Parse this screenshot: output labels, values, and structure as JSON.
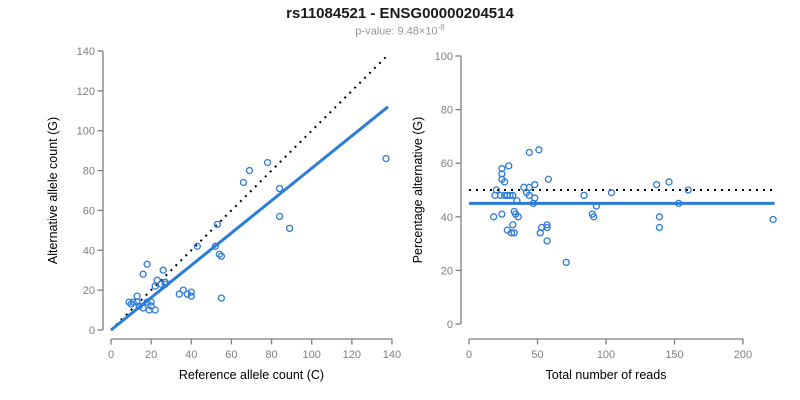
{
  "header": {
    "title": "rs11084521 - ENSG00000204514",
    "subtitle_base": "p-value: 9.48×10",
    "subtitle_exponent": "-8"
  },
  "colors": {
    "accent_blue": "#2B7BD8",
    "line_black": "#000000",
    "axis_gray": "#7f7f7f",
    "subtitle_gray": "#979797",
    "background": "#ffffff"
  },
  "chart_data": [
    {
      "type": "scatter",
      "name": "allele-counts-plot",
      "xlabel": "Reference allele count (C)",
      "ylabel": "Alternative allele count (G)",
      "xlim": [
        0,
        140
      ],
      "ylim": [
        0,
        140
      ],
      "xticks": [
        0,
        20,
        40,
        60,
        80,
        100,
        120,
        140
      ],
      "yticks": [
        0,
        20,
        40,
        60,
        80,
        100,
        120,
        140
      ],
      "grid": false,
      "legend": "none",
      "point_color": "#2B7BD8",
      "points": [
        [
          9,
          14
        ],
        [
          10,
          13
        ],
        [
          11,
          14
        ],
        [
          13,
          14
        ],
        [
          13,
          17
        ],
        [
          14,
          12
        ],
        [
          16,
          11
        ],
        [
          16,
          28
        ],
        [
          18,
          14
        ],
        [
          18,
          33
        ],
        [
          19,
          10
        ],
        [
          20,
          14
        ],
        [
          20,
          12
        ],
        [
          22,
          10
        ],
        [
          22,
          22
        ],
        [
          23,
          25
        ],
        [
          25,
          23
        ],
        [
          26,
          30
        ],
        [
          27,
          23
        ],
        [
          27,
          24
        ],
        [
          34,
          18
        ],
        [
          36,
          20
        ],
        [
          38,
          18
        ],
        [
          40,
          17
        ],
        [
          40,
          19
        ],
        [
          43,
          42
        ],
        [
          52,
          42
        ],
        [
          53,
          53
        ],
        [
          54,
          38
        ],
        [
          55,
          37
        ],
        [
          55,
          16
        ],
        [
          66,
          74
        ],
        [
          69,
          80
        ],
        [
          78,
          84
        ],
        [
          84,
          71
        ],
        [
          84,
          57
        ],
        [
          89,
          51
        ],
        [
          137,
          86
        ]
      ],
      "lines": [
        {
          "name": "identity-line",
          "style": "dotted",
          "color": "#000000",
          "width": 2,
          "x1": 0,
          "y1": 0,
          "x2": 137,
          "y2": 137
        },
        {
          "name": "regression-line",
          "style": "solid",
          "color": "#2B7BD8",
          "width": 3,
          "x1": 0,
          "y1": 0,
          "x2": 138,
          "y2": 112
        }
      ]
    },
    {
      "type": "scatter",
      "name": "percentage-alternative-plot",
      "xlabel": "Total number of reads",
      "ylabel": "Percentage alternative (G)",
      "xlim": [
        0,
        225
      ],
      "ylim": [
        0,
        100
      ],
      "xticks": [
        0,
        50,
        100,
        150,
        200
      ],
      "yticks": [
        0,
        20,
        40,
        60,
        80,
        100
      ],
      "grid": false,
      "legend": "none",
      "point_color": "#2B7BD8",
      "points": [
        [
          44,
          64
        ],
        [
          51,
          65
        ],
        [
          24,
          58
        ],
        [
          29,
          59
        ],
        [
          24,
          56
        ],
        [
          24,
          54
        ],
        [
          26,
          53
        ],
        [
          58,
          54
        ],
        [
          44,
          51
        ],
        [
          48,
          52
        ],
        [
          20,
          50
        ],
        [
          40,
          51
        ],
        [
          19,
          48
        ],
        [
          23,
          48
        ],
        [
          26,
          48
        ],
        [
          28,
          48
        ],
        [
          30,
          48
        ],
        [
          32,
          48
        ],
        [
          35,
          46
        ],
        [
          42,
          49
        ],
        [
          44,
          48
        ],
        [
          47,
          45
        ],
        [
          48,
          47
        ],
        [
          84,
          48
        ],
        [
          93,
          44
        ],
        [
          104,
          49
        ],
        [
          137,
          52
        ],
        [
          146,
          53
        ],
        [
          153,
          45
        ],
        [
          160,
          50
        ],
        [
          24,
          41
        ],
        [
          18,
          40
        ],
        [
          33,
          42
        ],
        [
          34,
          41
        ],
        [
          36,
          40
        ],
        [
          32,
          37
        ],
        [
          28,
          35
        ],
        [
          31,
          34
        ],
        [
          33,
          34
        ],
        [
          52,
          34
        ],
        [
          53,
          36
        ],
        [
          57,
          37
        ],
        [
          57,
          36
        ],
        [
          57,
          31
        ],
        [
          71,
          23
        ],
        [
          90,
          41
        ],
        [
          91,
          40
        ],
        [
          139,
          40
        ],
        [
          139,
          36
        ],
        [
          222,
          39
        ]
      ],
      "lines": [
        {
          "name": "fifty-percent-line",
          "style": "dotted",
          "color": "#000000",
          "width": 2,
          "x1": 0,
          "y1": 50,
          "x2": 223,
          "y2": 50
        },
        {
          "name": "mean-percentage-line",
          "style": "solid",
          "color": "#2B7BD8",
          "width": 3,
          "x1": 0,
          "y1": 45,
          "x2": 223,
          "y2": 45
        }
      ]
    }
  ]
}
